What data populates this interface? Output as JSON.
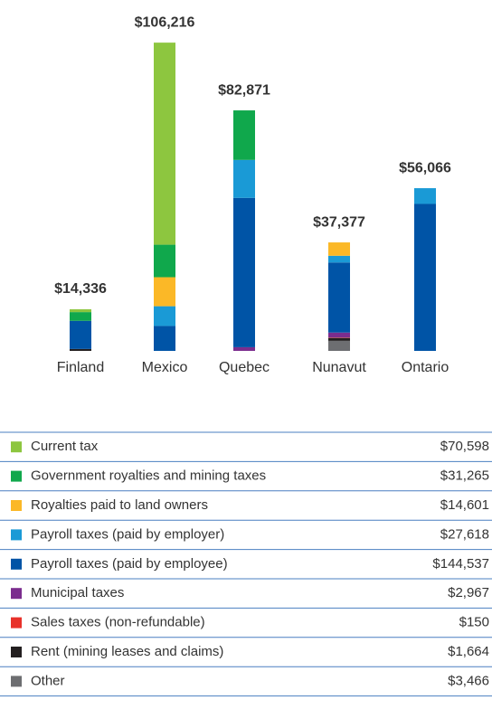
{
  "chart_data": {
    "type": "stacked_bar",
    "categories": [
      "Finland",
      "Mexico",
      "Quebec",
      "Nunavut",
      "Ontario"
    ],
    "totals": [
      14336,
      106216,
      82871,
      37377,
      56066
    ],
    "total_labels": [
      "$14,336",
      "$106,216",
      "$82,871",
      "$37,377",
      "$56,066"
    ],
    "ylim": [
      0,
      110000
    ],
    "series": [
      {
        "name": "Current tax",
        "color": "#8dc63f",
        "values": [
          972,
          69626,
          null,
          null,
          null
        ],
        "total": 70598,
        "total_label": "$70,598"
      },
      {
        "name": "Government royalties and mining taxes",
        "color": "#10a84c",
        "values": [
          3000,
          11200,
          17065,
          null,
          null
        ],
        "total": 31265,
        "total_label": "$31,265"
      },
      {
        "name": "Royalties paid to land owners",
        "color": "#fbb827",
        "values": [
          null,
          10000,
          null,
          4601,
          null
        ],
        "total": 14601,
        "total_label": "$14,601"
      },
      {
        "name": "Payroll taxes (paid by employer)",
        "color": "#1a9ad6",
        "values": [
          null,
          6800,
          13080,
          2314,
          5424
        ],
        "total": 27618,
        "total_label": "$27,618"
      },
      {
        "name": "Payroll taxes (paid by employee)",
        "color": "#0054a6",
        "values": [
          9700,
          8590,
          51455,
          24150,
          50642
        ],
        "total": 144537,
        "total_label": "$144,537"
      },
      {
        "name": "Municipal taxes",
        "color": "#7b2d8e",
        "values": [
          null,
          null,
          1271,
          1696,
          null
        ],
        "total": 2967,
        "total_label": "$2,967"
      },
      {
        "name": "Sales taxes (non-refundable)",
        "color": "#e8312a",
        "values": [
          null,
          null,
          null,
          150,
          null
        ],
        "total": 150,
        "total_label": "$150"
      },
      {
        "name": "Rent (mining leases and claims)",
        "color": "#231f20",
        "values": [
          664,
          null,
          null,
          1000,
          null
        ],
        "total": 1664,
        "total_label": "$1,664"
      },
      {
        "name": "Other",
        "color": "#6d6e71",
        "values": [
          null,
          null,
          null,
          3466,
          null
        ],
        "total": 3466,
        "total_label": "$3,466"
      }
    ]
  }
}
